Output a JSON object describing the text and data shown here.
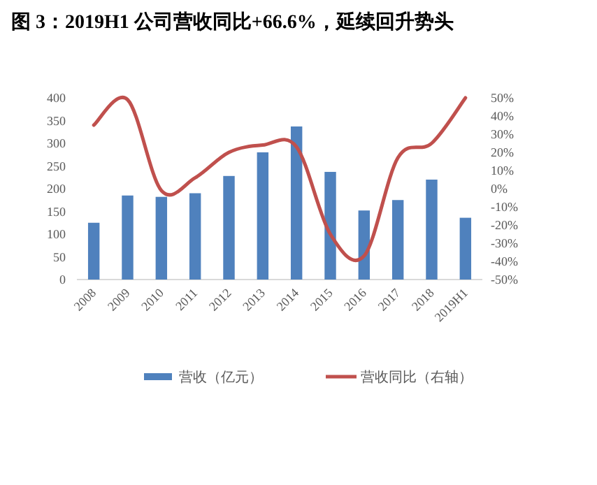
{
  "chart_data": {
    "type": "bar",
    "title": "图 3：2019H1 公司营收同比+66.6%，延续回升势头",
    "categories": [
      "2008",
      "2009",
      "2010",
      "2011",
      "2012",
      "2013",
      "2014",
      "2015",
      "2016",
      "2017",
      "2018",
      "2019H1"
    ],
    "series": [
      {
        "name": "营收（亿元）",
        "color": "#4f81bd",
        "values": [
          125,
          185,
          182,
          190,
          228,
          280,
          337,
          237,
          152,
          175,
          220,
          136
        ]
      },
      {
        "name": "营收同比（右轴）",
        "type": "line",
        "axis": "y2",
        "color": "#c0504d",
        "values": [
          35,
          49,
          -1,
          6,
          20,
          24,
          23,
          -25,
          -37,
          17,
          25,
          50
        ]
      }
    ],
    "ylim": [
      0,
      400
    ],
    "yticks": [
      0,
      50,
      100,
      150,
      200,
      250,
      300,
      350,
      400
    ],
    "y2lim": [
      -50,
      50
    ],
    "y2ticks": [
      {
        "value": -50,
        "label": "-50%"
      },
      {
        "value": -40,
        "label": "-40%"
      },
      {
        "value": -30,
        "label": "-30%"
      },
      {
        "value": -20,
        "label": "-20%"
      },
      {
        "value": -10,
        "label": "-10%"
      },
      {
        "value": 0,
        "label": "0%"
      },
      {
        "value": 10,
        "label": "10%"
      },
      {
        "value": 20,
        "label": "20%"
      },
      {
        "value": 30,
        "label": "30%"
      },
      {
        "value": 40,
        "label": "40%"
      },
      {
        "value": 50,
        "label": "50%"
      }
    ],
    "legend": "bottom"
  }
}
